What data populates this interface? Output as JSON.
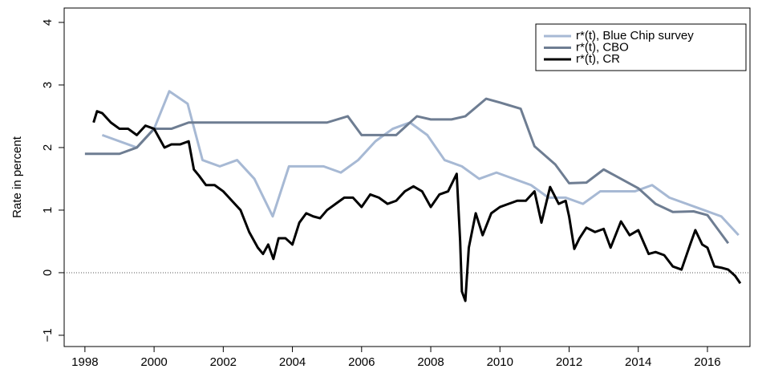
{
  "chart_data": {
    "type": "line",
    "y_label": "Rate in percent",
    "xlim": [
      1997.4,
      2017.23
    ],
    "ylim": [
      -1.18,
      4.23
    ],
    "xticks": [
      1998,
      2000,
      2002,
      2004,
      2006,
      2008,
      2010,
      2012,
      2014,
      2016
    ],
    "yticks": [
      {
        "value": -1,
        "label": "−1"
      },
      0,
      1,
      2,
      3,
      4
    ],
    "reference_line": 0,
    "legend": "top-right",
    "series": [
      {
        "name": "r*(t), Blue Chip survey",
        "color": "#a7b9d4",
        "width": 3,
        "x": [
          1998.5,
          1999.5,
          2000.0,
          2000.44,
          2000.97,
          2001.4,
          2001.9,
          2002.4,
          2002.9,
          2003.43,
          2003.9,
          2004.9,
          2005.4,
          2005.9,
          2006.4,
          2006.9,
          2007.4,
          2007.9,
          2008.4,
          2008.9,
          2009.4,
          2009.9,
          2010.4,
          2010.9,
          2011.4,
          2011.9,
          2012.4,
          2012.9,
          2013.9,
          2014.4,
          2014.9,
          2015.9,
          2016.4,
          2016.9
        ],
        "values": [
          2.2,
          2.0,
          2.3,
          2.9,
          2.7,
          1.8,
          1.7,
          1.8,
          1.5,
          0.9,
          1.7,
          1.7,
          1.6,
          1.8,
          2.1,
          2.3,
          2.4,
          2.2,
          1.8,
          1.7,
          1.5,
          1.6,
          1.5,
          1.4,
          1.2,
          1.2,
          1.1,
          1.3,
          1.3,
          1.4,
          1.2,
          1.0,
          0.9,
          0.6
        ]
      },
      {
        "name": "r*(t), CBO",
        "color": "#6e7d92",
        "width": 3,
        "x": [
          1998,
          1999,
          1999.5,
          2000,
          2000.5,
          2001,
          2005,
          2005.6,
          2006,
          2007,
          2007.6,
          2008,
          2008.6,
          2009,
          2009.6,
          2010,
          2010.6,
          2011,
          2011.6,
          2012,
          2012.5,
          2013,
          2014,
          2014.5,
          2015,
          2015.6,
          2016,
          2016.6
        ],
        "values": [
          1.9,
          1.9,
          2.0,
          2.3,
          2.3,
          2.4,
          2.4,
          2.5,
          2.2,
          2.2,
          2.5,
          2.45,
          2.45,
          2.5,
          2.78,
          2.72,
          2.62,
          2.02,
          1.73,
          1.43,
          1.44,
          1.65,
          1.35,
          1.1,
          0.97,
          0.98,
          0.92,
          0.47
        ]
      },
      {
        "name": "r*(t), CR",
        "color": "#000000",
        "width": 3,
        "x": [
          1998.25,
          1998.35,
          1998.5,
          1998.75,
          1999,
          1999.25,
          1999.5,
          1999.75,
          2000,
          2000.15,
          2000.3,
          2000.5,
          2000.75,
          2001,
          2001.15,
          2001.3,
          2001.5,
          2001.75,
          2002,
          2002.25,
          2002.5,
          2002.75,
          2003,
          2003.15,
          2003.3,
          2003.45,
          2003.6,
          2003.8,
          2004,
          2004.2,
          2004.4,
          2004.6,
          2004.8,
          2005,
          2005.25,
          2005.5,
          2005.75,
          2006,
          2006.25,
          2006.5,
          2006.75,
          2007,
          2007.25,
          2007.5,
          2007.75,
          2008,
          2008.25,
          2008.5,
          2008.75,
          2008.85,
          2008.9,
          2009,
          2009.1,
          2009.3,
          2009.5,
          2009.75,
          2010,
          2010.25,
          2010.5,
          2010.75,
          2011,
          2011.2,
          2011.45,
          2011.7,
          2011.9,
          2012,
          2012.15,
          2012.3,
          2012.5,
          2012.75,
          2013,
          2013.2,
          2013.5,
          2013.75,
          2014,
          2014.3,
          2014.5,
          2014.75,
          2015,
          2015.25,
          2015.5,
          2015.65,
          2015.85,
          2016,
          2016.2,
          2016.4,
          2016.6,
          2016.8,
          2016.95
        ],
        "values": [
          2.4,
          2.58,
          2.55,
          2.4,
          2.3,
          2.3,
          2.2,
          2.35,
          2.3,
          2.15,
          2.0,
          2.05,
          2.05,
          2.1,
          1.65,
          1.55,
          1.4,
          1.4,
          1.3,
          1.15,
          1.0,
          0.65,
          0.4,
          0.3,
          0.45,
          0.22,
          0.55,
          0.55,
          0.45,
          0.8,
          0.95,
          0.9,
          0.87,
          1.0,
          1.1,
          1.2,
          1.2,
          1.05,
          1.25,
          1.2,
          1.1,
          1.15,
          1.3,
          1.38,
          1.3,
          1.05,
          1.25,
          1.3,
          1.58,
          0.5,
          -0.3,
          -0.45,
          0.4,
          0.95,
          0.6,
          0.95,
          1.05,
          1.1,
          1.15,
          1.15,
          1.3,
          0.8,
          1.37,
          1.1,
          1.15,
          0.9,
          0.38,
          0.55,
          0.72,
          0.65,
          0.7,
          0.4,
          0.82,
          0.6,
          0.68,
          0.3,
          0.33,
          0.28,
          0.1,
          0.05,
          0.45,
          0.68,
          0.45,
          0.4,
          0.1,
          0.08,
          0.05,
          -0.05,
          -0.17
        ]
      }
    ]
  }
}
